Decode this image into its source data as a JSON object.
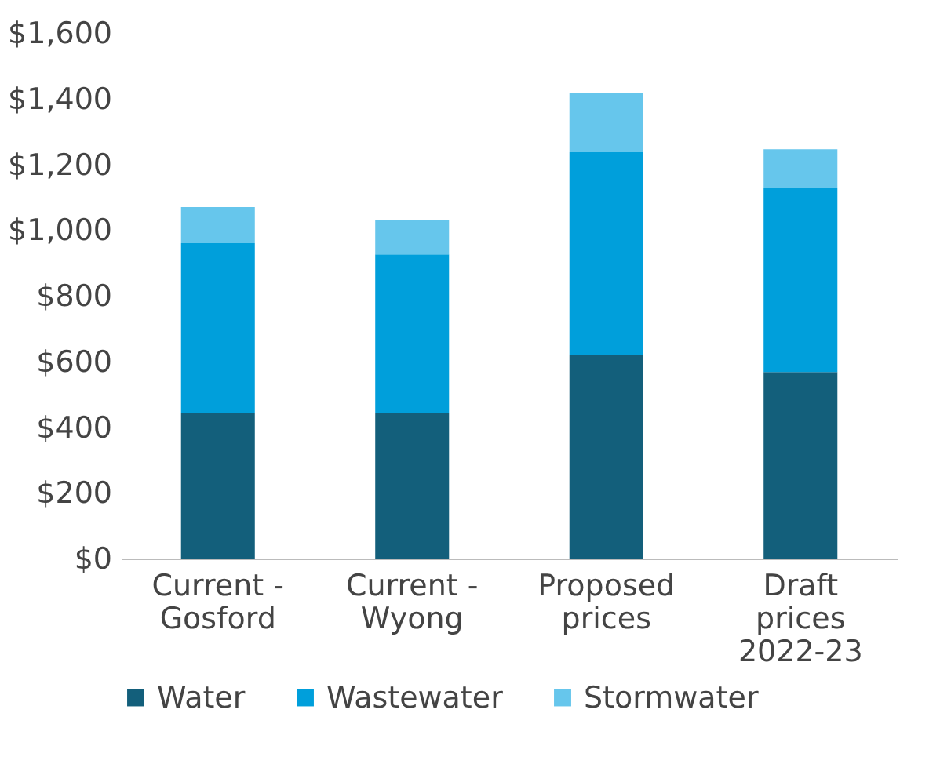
{
  "chart_data": {
    "type": "bar",
    "stacked": true,
    "legend": "bottom",
    "categories": [
      "Current -\nGosford",
      "Current -\nWyong",
      "Proposed\nprices",
      "Draft\nprices\n2022-23"
    ],
    "series": [
      {
        "name": "Water",
        "color": "#135f7b",
        "values": [
          444,
          444,
          621,
          568
        ]
      },
      {
        "name": "Wastewater",
        "color": "#009fdb",
        "values": [
          516,
          482,
          616,
          559
        ]
      },
      {
        "name": "Stormwater",
        "color": "#66c6ec",
        "values": [
          110,
          105,
          181,
          119
        ]
      }
    ],
    "ylim": [
      0,
      1600
    ],
    "yticks": [
      {
        "value": 0,
        "label": "$0"
      },
      {
        "value": 200,
        "label": "$200"
      },
      {
        "value": 400,
        "label": "$400"
      },
      {
        "value": 600,
        "label": "$600"
      },
      {
        "value": 800,
        "label": "$800"
      },
      {
        "value": 1000,
        "label": "$1,000"
      },
      {
        "value": 1200,
        "label": "$1,200"
      },
      {
        "value": 1400,
        "label": "$1,400"
      },
      {
        "value": 1600,
        "label": "$1,600"
      }
    ]
  }
}
